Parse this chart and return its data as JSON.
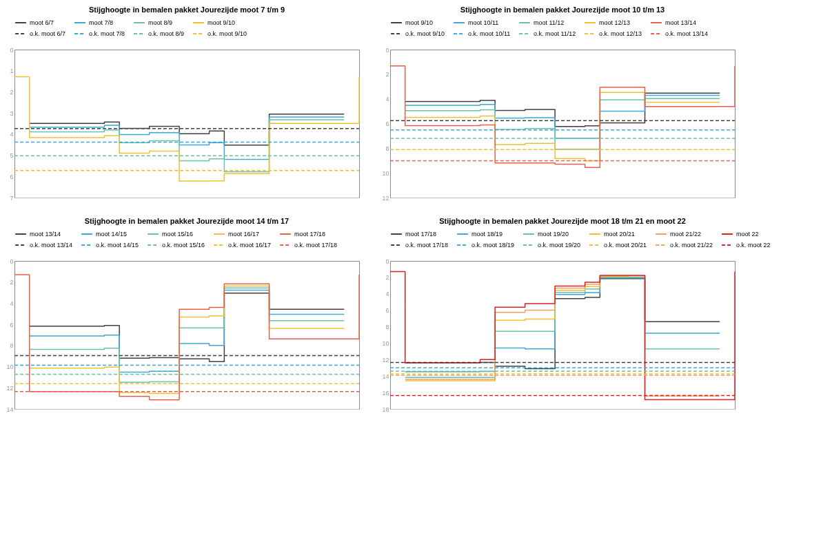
{
  "chart_data": [
    {
      "type": "step",
      "title": "Stijghoogte in bemalen pakket Jourezijde moot 7 t/m 9",
      "legend": "top",
      "ylim": [
        7,
        0
      ],
      "yticks": [
        0,
        1,
        2,
        3,
        4,
        5,
        6,
        7
      ],
      "categories": [
        null,
        null,
        null,
        null,
        null,
        null,
        null,
        null,
        null,
        null,
        null,
        null,
        null,
        null,
        null,
        null,
        null,
        null,
        null,
        null,
        null,
        null,
        null,
        null
      ],
      "series": [
        {
          "name": "moot 6/7",
          "color": "#404040",
          "values": [
            null,
            3.49,
            3.49,
            3.49,
            3.49,
            3.49,
            3.43,
            3.73,
            3.73,
            3.63,
            3.63,
            3.98,
            3.98,
            3.85,
            4.52,
            4.52,
            4.52,
            3.05,
            3.05,
            3.05,
            3.05,
            3.05,
            3.05,
            null
          ]
        },
        {
          "name": "moot 7/8",
          "color": "#3aa8d8",
          "values": [
            null,
            3.67,
            3.67,
            3.67,
            3.67,
            3.67,
            3.58,
            4.02,
            4.02,
            3.93,
            3.93,
            4.51,
            4.51,
            4.4,
            5.19,
            5.19,
            5.19,
            3.19,
            3.19,
            3.19,
            3.19,
            3.19,
            3.19,
            null
          ]
        },
        {
          "name": "moot 8/9",
          "color": "#6cc0a8",
          "values": [
            null,
            3.89,
            3.89,
            3.89,
            3.89,
            3.89,
            3.8,
            4.4,
            4.4,
            4.31,
            4.31,
            5.26,
            5.26,
            5.17,
            5.78,
            5.78,
            5.78,
            3.32,
            3.32,
            3.32,
            3.32,
            3.32,
            3.32,
            null
          ]
        },
        {
          "name": "moot 9/10",
          "color": "#f0c030",
          "values": [
            1.29,
            4.16,
            4.16,
            4.16,
            4.16,
            4.16,
            4.07,
            4.9,
            4.9,
            4.8,
            4.8,
            6.22,
            6.22,
            6.21,
            5.87,
            5.87,
            5.87,
            3.49,
            3.49,
            3.49,
            3.49,
            3.49,
            3.49,
            1.29
          ]
        },
        {
          "name": "o.k. moot 6/7",
          "color": "#404040",
          "line_style": "dashed",
          "values": [
            3.74,
            3.74,
            3.74,
            3.74,
            3.74,
            3.74,
            3.74,
            3.74,
            3.74,
            3.74,
            3.74,
            3.74,
            3.74,
            3.74,
            3.74,
            3.74,
            3.74,
            3.74,
            3.74,
            3.74,
            3.74,
            3.74,
            3.74,
            3.74
          ]
        },
        {
          "name": "o.k. moot 7/8",
          "color": "#3aa8d8",
          "line_style": "dashed",
          "values": [
            4.38,
            4.38,
            4.38,
            4.38,
            4.38,
            4.38,
            4.38,
            4.38,
            4.38,
            4.38,
            4.38,
            4.38,
            4.38,
            4.38,
            4.38,
            4.38,
            4.38,
            4.38,
            4.38,
            4.38,
            4.38,
            4.38,
            4.38,
            4.38
          ]
        },
        {
          "name": "o.k. moot 8/9",
          "color": "#6cc0a8",
          "line_style": "dashed",
          "values": [
            5.02,
            5.02,
            5.02,
            5.02,
            5.02,
            5.02,
            5.02,
            5.02,
            5.02,
            5.02,
            5.02,
            5.02,
            5.02,
            5.02,
            5.02,
            5.02,
            5.02,
            5.02,
            5.02,
            5.02,
            5.02,
            5.02,
            5.02,
            5.02
          ]
        },
        {
          "name": "o.k. moot 9/10",
          "color": "#f0c030",
          "line_style": "dashed",
          "values": [
            5.72,
            5.72,
            5.72,
            5.72,
            5.72,
            5.72,
            5.72,
            5.72,
            5.72,
            5.72,
            5.72,
            5.72,
            5.72,
            5.72,
            5.72,
            5.72,
            5.72,
            5.72,
            5.72,
            5.72,
            5.72,
            5.72,
            5.72,
            5.72
          ]
        }
      ]
    },
    {
      "type": "step",
      "title": "Stijghoogte in bemalen pakket Jourezijde moot 10 t/m 13",
      "legend": "top",
      "ylim": [
        12,
        0
      ],
      "yticks": [
        0,
        2,
        4,
        6,
        8,
        10,
        12
      ],
      "categories": [
        null,
        null,
        null,
        null,
        null,
        null,
        null,
        null,
        null,
        null,
        null,
        null,
        null,
        null,
        null,
        null,
        null,
        null,
        null,
        null,
        null,
        null,
        null,
        null
      ],
      "series": [
        {
          "name": "moot 9/10",
          "color": "#404040",
          "values": [
            null,
            4.21,
            4.21,
            4.21,
            4.21,
            4.21,
            4.12,
            4.94,
            4.94,
            4.85,
            4.85,
            6.24,
            6.24,
            6.18,
            5.95,
            5.95,
            5.95,
            3.53,
            3.53,
            3.53,
            3.53,
            3.53,
            3.53,
            null
          ]
        },
        {
          "name": "moot 10/11",
          "color": "#3aa8d8",
          "values": [
            null,
            4.52,
            4.52,
            4.52,
            4.52,
            4.52,
            4.45,
            5.56,
            5.56,
            5.52,
            5.52,
            7.18,
            7.18,
            7.18,
            5.0,
            5.0,
            5.0,
            3.71,
            3.71,
            3.71,
            3.71,
            3.71,
            3.71,
            null
          ]
        },
        {
          "name": "moot 11/12",
          "color": "#6cc0a8",
          "values": [
            null,
            4.95,
            4.95,
            4.95,
            4.95,
            4.95,
            4.88,
            6.47,
            6.47,
            6.41,
            6.41,
            8.08,
            8.08,
            8.08,
            4.08,
            4.08,
            4.08,
            3.98,
            3.98,
            3.98,
            3.98,
            3.98,
            3.98,
            null
          ]
        },
        {
          "name": "moot 12/13",
          "color": "#f0c030",
          "values": [
            null,
            5.5,
            5.5,
            5.5,
            5.5,
            5.5,
            5.39,
            7.7,
            7.7,
            7.61,
            7.61,
            8.83,
            8.83,
            9.02,
            3.48,
            3.48,
            3.48,
            4.27,
            4.27,
            4.27,
            4.27,
            4.27,
            4.27,
            null
          ]
        },
        {
          "name": "moot 13/14",
          "color": "#e8604c",
          "values": [
            1.33,
            6.17,
            6.17,
            6.17,
            6.17,
            6.17,
            6.11,
            9.2,
            9.2,
            9.2,
            9.2,
            9.29,
            9.29,
            9.56,
            3.05,
            3.05,
            3.05,
            4.62,
            4.62,
            4.62,
            4.62,
            4.62,
            4.62,
            1.33
          ]
        },
        {
          "name": "o.k. moot 9/10",
          "color": "#404040",
          "line_style": "dashed",
          "values": [
            5.76,
            5.76,
            5.76,
            5.76,
            5.76,
            5.76,
            5.76,
            5.76,
            5.76,
            5.76,
            5.76,
            5.76,
            5.76,
            5.76,
            5.76,
            5.76,
            5.76,
            5.76,
            5.76,
            5.76,
            5.76,
            5.76,
            5.76,
            5.76
          ]
        },
        {
          "name": "o.k. moot 10/11",
          "color": "#3aa8d8",
          "line_style": "dashed",
          "values": [
            6.52,
            6.52,
            6.52,
            6.52,
            6.52,
            6.52,
            6.52,
            6.52,
            6.52,
            6.52,
            6.52,
            6.52,
            6.52,
            6.52,
            6.52,
            6.52,
            6.52,
            6.52,
            6.52,
            6.52,
            6.52,
            6.52,
            6.52,
            6.52
          ]
        },
        {
          "name": "o.k. moot 11/12",
          "color": "#6cc0a8",
          "line_style": "dashed",
          "values": [
            7.2,
            7.2,
            7.2,
            7.2,
            7.2,
            7.2,
            7.2,
            7.2,
            7.2,
            7.2,
            7.2,
            7.2,
            7.2,
            7.2,
            7.2,
            7.2,
            7.2,
            7.2,
            7.2,
            7.2,
            7.2,
            7.2,
            7.2,
            7.2
          ]
        },
        {
          "name": "o.k. moot 12/13",
          "color": "#f0c030",
          "line_style": "dashed",
          "values": [
            8.11,
            8.11,
            8.11,
            8.11,
            8.11,
            8.11,
            8.11,
            8.11,
            8.11,
            8.11,
            8.11,
            8.11,
            8.11,
            8.11,
            8.11,
            8.11,
            8.11,
            8.11,
            8.11,
            8.11,
            8.11,
            8.11,
            8.11,
            8.11
          ]
        },
        {
          "name": "o.k. moot 13/14",
          "color": "#e8604c",
          "line_style": "dashed",
          "values": [
            9.02,
            9.02,
            9.02,
            9.02,
            9.02,
            9.02,
            9.02,
            9.02,
            9.02,
            9.02,
            9.02,
            9.02,
            9.02,
            9.02,
            9.02,
            9.02,
            9.02,
            9.02,
            9.02,
            9.02,
            9.02,
            9.02,
            9.02,
            9.02
          ]
        }
      ]
    },
    {
      "type": "step",
      "title": "Stijghoogte in bemalen pakket Jourezijde moot 14 t/m 17",
      "legend": "top",
      "ylim": [
        14,
        0
      ],
      "yticks": [
        0,
        2,
        4,
        6,
        8,
        10,
        12,
        14
      ],
      "categories": [
        null,
        null,
        null,
        null,
        null,
        null,
        null,
        null,
        null,
        null,
        null,
        null,
        null,
        null,
        null,
        null,
        null,
        null,
        null,
        null,
        null,
        null,
        null,
        null
      ],
      "series": [
        {
          "name": "moot 13/14",
          "color": "#404040",
          "values": [
            null,
            6.17,
            6.17,
            6.17,
            6.17,
            6.17,
            6.1,
            9.2,
            9.2,
            9.15,
            9.15,
            9.26,
            9.26,
            9.52,
            3.04,
            3.04,
            3.04,
            4.58,
            4.58,
            4.58,
            4.58,
            4.58,
            4.58,
            null
          ]
        },
        {
          "name": "moot 14/15",
          "color": "#3aa8d8",
          "values": [
            null,
            7.1,
            7.1,
            7.1,
            7.1,
            7.1,
            7.01,
            10.51,
            10.51,
            10.44,
            10.44,
            7.81,
            7.81,
            7.99,
            2.76,
            2.76,
            2.76,
            5.04,
            5.04,
            5.04,
            5.04,
            5.04,
            5.04,
            null
          ]
        },
        {
          "name": "moot 15/16",
          "color": "#6cc0a8",
          "values": [
            null,
            8.37,
            8.37,
            8.37,
            8.37,
            8.37,
            8.25,
            11.48,
            11.48,
            11.43,
            11.43,
            6.34,
            6.34,
            6.34,
            2.56,
            2.56,
            2.56,
            5.65,
            5.65,
            5.65,
            5.65,
            5.65,
            5.65,
            null
          ]
        },
        {
          "name": "moot 16/17",
          "color": "#f0c030",
          "values": [
            null,
            10.14,
            10.14,
            10.14,
            10.14,
            10.14,
            10.05,
            12.46,
            12.46,
            12.53,
            12.53,
            5.3,
            5.3,
            5.19,
            2.37,
            2.37,
            2.37,
            6.38,
            6.38,
            6.38,
            6.38,
            6.38,
            6.38,
            null
          ]
        },
        {
          "name": "moot 17/18",
          "color": "#e8604c",
          "values": [
            1.31,
            12.35,
            12.35,
            12.35,
            12.35,
            12.35,
            12.35,
            12.81,
            12.81,
            13.13,
            13.13,
            4.58,
            4.58,
            4.4,
            2.17,
            2.17,
            2.17,
            7.37,
            7.37,
            7.37,
            7.37,
            7.37,
            7.37,
            1.31
          ]
        },
        {
          "name": "o.k. moot 13/14",
          "color": "#404040",
          "line_style": "dashed",
          "values": [
            8.96,
            8.96,
            8.96,
            8.96,
            8.96,
            8.96,
            8.96,
            8.96,
            8.96,
            8.96,
            8.96,
            8.96,
            8.96,
            8.96,
            8.96,
            8.96,
            8.96,
            8.96,
            8.96,
            8.96,
            8.96,
            8.96,
            8.96,
            8.96
          ]
        },
        {
          "name": "o.k. moot 14/15",
          "color": "#3aa8d8",
          "line_style": "dashed",
          "values": [
            9.86,
            9.86,
            9.86,
            9.86,
            9.86,
            9.86,
            9.86,
            9.86,
            9.86,
            9.86,
            9.86,
            9.86,
            9.86,
            9.86,
            9.86,
            9.86,
            9.86,
            9.86,
            9.86,
            9.86,
            9.86,
            9.86,
            9.86,
            9.86
          ]
        },
        {
          "name": "o.k. moot 15/16",
          "color": "#6cc0a8",
          "line_style": "dashed",
          "values": [
            10.72,
            10.72,
            10.72,
            10.72,
            10.72,
            10.72,
            10.72,
            10.72,
            10.72,
            10.72,
            10.72,
            10.72,
            10.72,
            10.72,
            10.72,
            10.72,
            10.72,
            10.72,
            10.72,
            10.72,
            10.72,
            10.72,
            10.72,
            10.72
          ]
        },
        {
          "name": "o.k. moot 16/17",
          "color": "#f0c030",
          "line_style": "dashed",
          "values": [
            11.61,
            11.61,
            11.61,
            11.61,
            11.61,
            11.61,
            11.61,
            11.61,
            11.61,
            11.61,
            11.61,
            11.61,
            11.61,
            11.61,
            11.61,
            11.61,
            11.61,
            11.61,
            11.61,
            11.61,
            11.61,
            11.61,
            11.61,
            11.61
          ]
        },
        {
          "name": "o.k. moot 17/18",
          "color": "#e8604c",
          "line_style": "dashed",
          "values": [
            12.35,
            12.35,
            12.35,
            12.35,
            12.35,
            12.35,
            12.35,
            12.35,
            12.35,
            12.35,
            12.35,
            12.35,
            12.35,
            12.35,
            12.35,
            12.35,
            12.35,
            12.35,
            12.35,
            12.35,
            12.35,
            12.35,
            12.35,
            12.35
          ]
        }
      ]
    },
    {
      "type": "step",
      "title": "Stijghoogte in bemalen pakket Jourezijde moot 18 t/m 21 en moot 22",
      "legend": "top",
      "ylim": [
        18,
        0
      ],
      "yticks": [
        0,
        2,
        4,
        6,
        8,
        10,
        12,
        14,
        16,
        18
      ],
      "categories": [
        null,
        null,
        null,
        null,
        null,
        null,
        null,
        null,
        null,
        null,
        null,
        null,
        null,
        null,
        null,
        null,
        null,
        null,
        null,
        null,
        null,
        null,
        null,
        null
      ],
      "series": [
        {
          "name": "moot 17/18",
          "color": "#404040",
          "values": [
            null,
            12.39,
            12.39,
            12.39,
            12.39,
            12.39,
            12.34,
            12.8,
            12.8,
            13.11,
            13.11,
            4.59,
            4.59,
            4.43,
            2.16,
            2.16,
            2.16,
            7.39,
            7.39,
            7.39,
            7.39,
            7.39,
            7.39,
            null
          ]
        },
        {
          "name": "moot 18/19",
          "color": "#3aa8d8",
          "values": [
            null,
            13.48,
            13.48,
            13.48,
            13.48,
            13.48,
            13.43,
            10.59,
            10.59,
            10.7,
            10.7,
            4.09,
            4.09,
            3.86,
            2.07,
            2.07,
            2.07,
            8.8,
            8.8,
            8.8,
            8.8,
            8.8,
            8.8,
            null
          ]
        },
        {
          "name": "moot 19/20",
          "color": "#6cc0a8",
          "values": [
            null,
            14.16,
            14.16,
            14.16,
            14.16,
            14.16,
            14.16,
            8.57,
            8.57,
            8.57,
            8.57,
            3.84,
            3.84,
            3.41,
            1.98,
            1.98,
            1.98,
            10.7,
            10.7,
            10.7,
            10.7,
            10.7,
            10.7,
            null
          ]
        },
        {
          "name": "moot 20/21",
          "color": "#f0c030",
          "values": [
            null,
            14.57,
            14.57,
            14.57,
            14.57,
            14.57,
            14.57,
            7.23,
            7.23,
            7.07,
            7.07,
            3.57,
            3.57,
            3.11,
            1.89,
            1.89,
            1.89,
            null,
            null,
            null,
            null,
            null,
            null,
            null
          ]
        },
        {
          "name": "moot 21/22",
          "color": "#f0a060",
          "values": [
            null,
            14.39,
            14.39,
            14.39,
            14.39,
            14.39,
            14.39,
            6.25,
            6.25,
            5.98,
            5.98,
            3.3,
            3.3,
            2.84,
            1.82,
            1.82,
            1.82,
            16.43,
            16.43,
            16.43,
            16.43,
            16.43,
            16.43,
            null
          ]
        },
        {
          "name": "moot 22",
          "color": "#e02020",
          "values": [
            1.3,
            12.41,
            12.41,
            12.41,
            12.41,
            12.41,
            12.0,
            5.64,
            5.64,
            5.2,
            5.2,
            3.05,
            3.05,
            2.59,
            1.75,
            1.75,
            1.75,
            16.86,
            16.86,
            16.86,
            16.86,
            16.86,
            16.86,
            1.3
          ]
        },
        {
          "name": "o.k. moot 17/18",
          "color": "#404040",
          "line_style": "dashed",
          "values": [
            12.34,
            12.34,
            12.34,
            12.34,
            12.34,
            12.34,
            12.34,
            12.34,
            12.34,
            12.34,
            12.34,
            12.34,
            12.34,
            12.34,
            12.34,
            12.34,
            12.34,
            12.34,
            12.34,
            12.34,
            12.34,
            12.34,
            12.34,
            12.34
          ]
        },
        {
          "name": "o.k. moot 18/19",
          "color": "#3aa8d8",
          "line_style": "dashed",
          "values": [
            13.0,
            13.0,
            13.0,
            13.0,
            13.0,
            13.0,
            13.0,
            13.0,
            13.0,
            13.0,
            13.0,
            13.0,
            13.0,
            13.0,
            13.0,
            13.0,
            13.0,
            13.0,
            13.0,
            13.0,
            13.0,
            13.0,
            13.0,
            13.0
          ]
        },
        {
          "name": "o.k. moot 19/20",
          "color": "#6cc0a8",
          "line_style": "dashed",
          "values": [
            13.41,
            13.41,
            13.41,
            13.41,
            13.41,
            13.41,
            13.41,
            13.41,
            13.41,
            13.41,
            13.41,
            13.41,
            13.41,
            13.41,
            13.41,
            13.41,
            13.41,
            13.41,
            13.41,
            13.41,
            13.41,
            13.41,
            13.41,
            13.41
          ]
        },
        {
          "name": "o.k. moot 20/21",
          "color": "#f0c030",
          "line_style": "dashed",
          "values": [
            13.75,
            13.75,
            13.75,
            13.75,
            13.75,
            13.75,
            13.75,
            13.75,
            13.75,
            13.75,
            13.75,
            13.75,
            13.75,
            13.75,
            13.75,
            13.75,
            13.75,
            13.75,
            13.75,
            13.75,
            13.75,
            13.75,
            13.75,
            13.75
          ]
        },
        {
          "name": "o.k. moot 21/22",
          "color": "#f0a060",
          "line_style": "dashed",
          "values": [
            13.91,
            13.91,
            13.91,
            13.91,
            13.91,
            13.91,
            13.91,
            13.91,
            13.91,
            13.91,
            13.91,
            13.91,
            13.91,
            13.91,
            13.91,
            13.91,
            13.91,
            13.91,
            13.91,
            13.91,
            13.91,
            13.91,
            13.91,
            13.91
          ]
        },
        {
          "name": "o.k. moot 22",
          "color": "#e02020",
          "line_style": "dashed",
          "values": [
            16.36,
            16.36,
            16.36,
            16.36,
            16.36,
            16.36,
            16.36,
            16.36,
            16.36,
            16.36,
            16.36,
            16.36,
            16.36,
            16.36,
            16.36,
            16.36,
            16.36,
            16.36,
            16.36,
            16.36,
            16.36,
            16.36,
            16.36,
            16.36
          ]
        }
      ]
    }
  ]
}
